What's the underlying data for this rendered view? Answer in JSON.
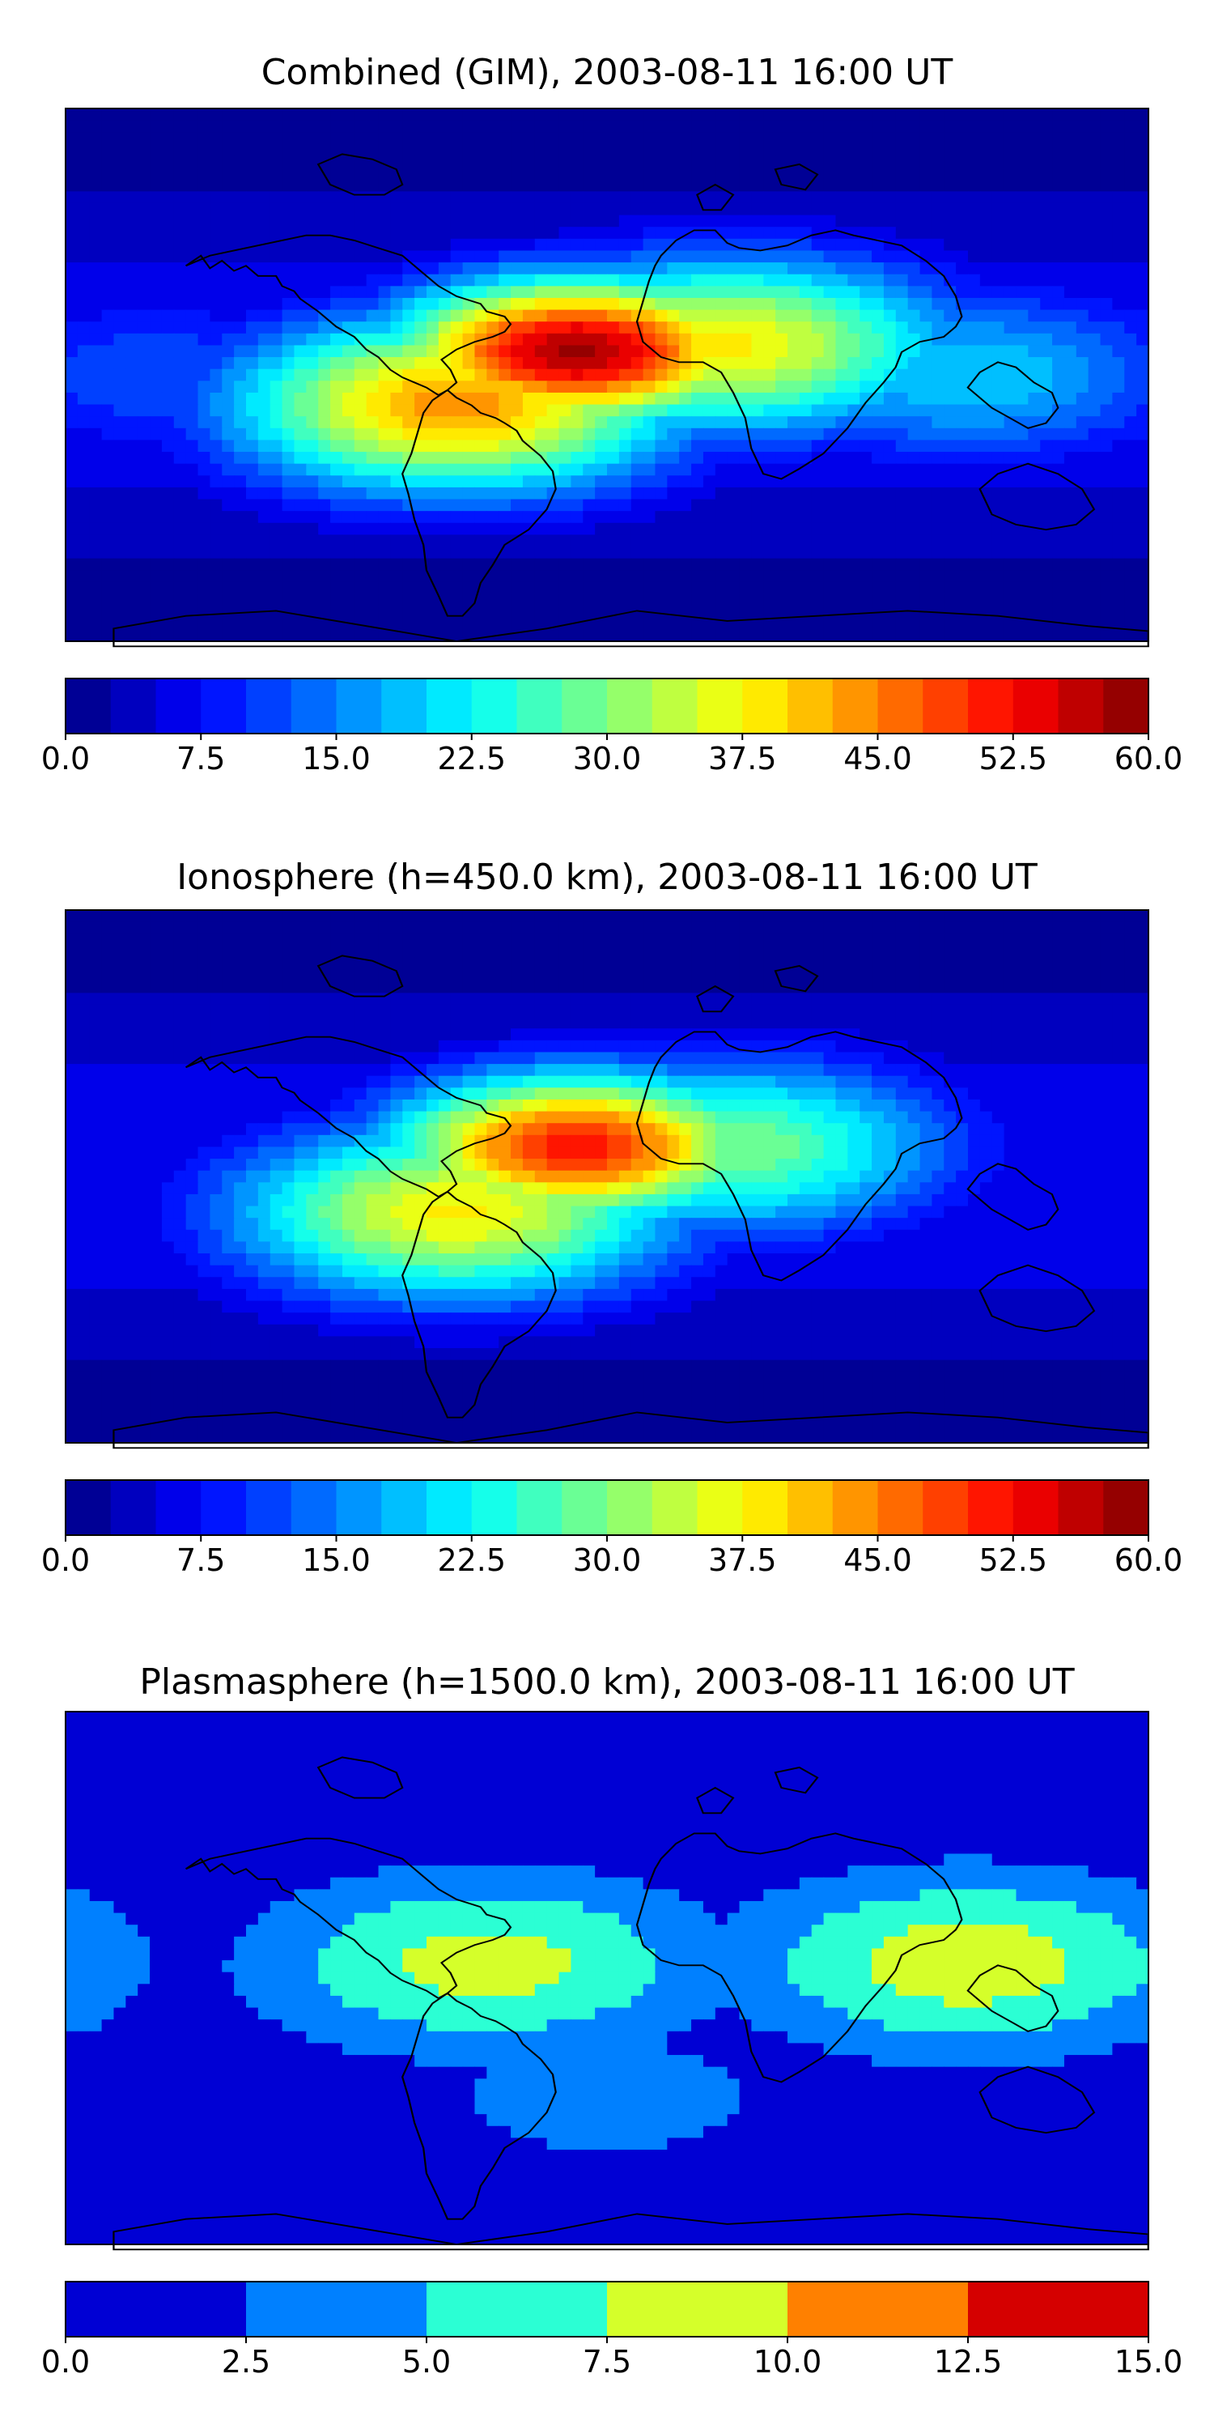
{
  "chart_data": [
    {
      "type": "heatmap",
      "title": "Combined (GIM), 2003-08-11 16:00 UT",
      "xlabel": "",
      "ylabel": "",
      "colorbar": {
        "min": 0,
        "max": 60,
        "levels": 24,
        "ticks": [
          "0.0",
          "7.5",
          "15.0",
          "22.5",
          "30.0",
          "37.5",
          "45.0",
          "52.5",
          "60.0"
        ],
        "tick_values": [
          0,
          7.5,
          15,
          22.5,
          30,
          37.5,
          45,
          52.5,
          60
        ]
      },
      "colormap": "jet",
      "features": [
        {
          "lon": -10,
          "lat": 8,
          "value": 58,
          "note": "peak"
        },
        {
          "lon": -50,
          "lat": -10,
          "value": 44
        },
        {
          "lon": 40,
          "lat": 10,
          "value": 38
        },
        {
          "lon": 120,
          "lat": 0,
          "value": 20
        },
        {
          "lon": -150,
          "lat": 0,
          "value": 12
        }
      ]
    },
    {
      "type": "heatmap",
      "title": "Ionosphere  (h=450.0 km), 2003-08-11 16:00 UT",
      "xlabel": "",
      "ylabel": "",
      "colorbar": {
        "min": 0,
        "max": 60,
        "levels": 24,
        "ticks": [
          "0.0",
          "7.5",
          "15.0",
          "22.5",
          "30.0",
          "37.5",
          "45.0",
          "52.5",
          "60.0"
        ],
        "tick_values": [
          0,
          7.5,
          15,
          22.5,
          30,
          37.5,
          45,
          52.5,
          60
        ]
      },
      "colormap": "jet",
      "features": [
        {
          "lon": -10,
          "lat": 10,
          "value": 52,
          "note": "peak"
        },
        {
          "lon": -50,
          "lat": -12,
          "value": 38
        },
        {
          "lon": 40,
          "lat": 10,
          "value": 30
        },
        {
          "lon": 130,
          "lat": -15,
          "value": 3
        },
        {
          "lon": -150,
          "lat": 0,
          "value": 6
        }
      ]
    },
    {
      "type": "heatmap",
      "title": "Plasmasphere (h=1500.0 km), 2003-08-11 16:00 UT",
      "xlabel": "",
      "ylabel": "",
      "colorbar": {
        "min": 0,
        "max": 15,
        "levels": 6,
        "ticks": [
          "0.0",
          "2.5",
          "5.0",
          "7.5",
          "10.0",
          "12.5",
          "15.0"
        ],
        "tick_values": [
          0,
          2.5,
          5,
          7.5,
          10,
          12.5,
          15
        ]
      },
      "colormap": "jet",
      "features": [
        {
          "lon": 120,
          "lat": 5,
          "value": 9
        },
        {
          "lon": -40,
          "lat": 5,
          "value": 8.5
        },
        {
          "lon": 0,
          "lat": -40,
          "value": 3.5
        },
        {
          "lon": 0,
          "lat": 60,
          "value": 1.5
        }
      ]
    }
  ]
}
